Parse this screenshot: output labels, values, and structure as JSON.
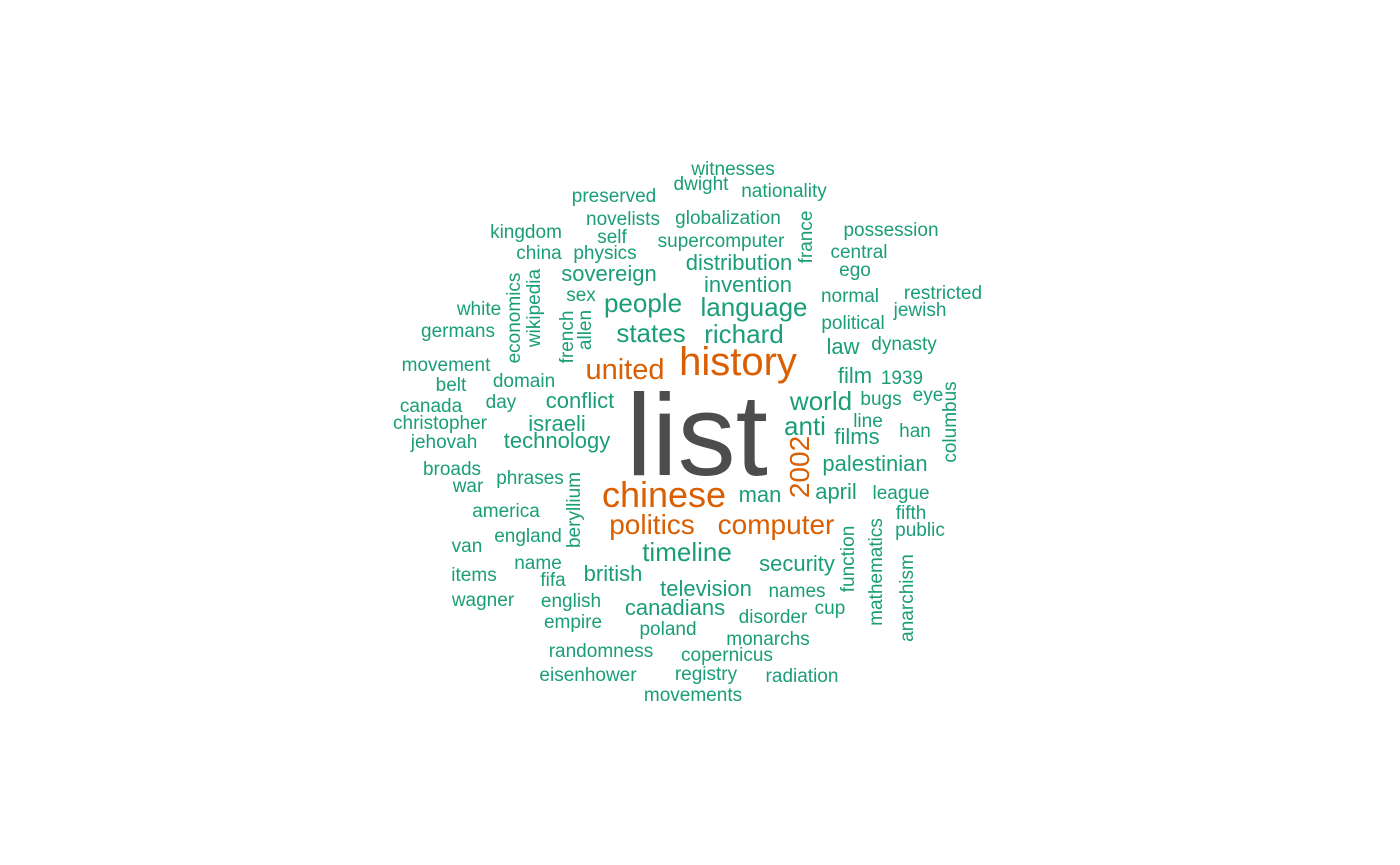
{
  "chart_data": {
    "type": "wordcloud",
    "colors": {
      "largest": "#4d4d4d",
      "large": "#d95f02",
      "regular": "#1b9e77"
    },
    "words": [
      {
        "text": "list",
        "tier": "largest",
        "weight": 10
      },
      {
        "text": "history",
        "tier": "large",
        "weight": 4
      },
      {
        "text": "chinese",
        "tier": "large",
        "weight": 4
      },
      {
        "text": "united",
        "tier": "large",
        "weight": 3
      },
      {
        "text": "politics",
        "tier": "large",
        "weight": 3
      },
      {
        "text": "computer",
        "tier": "large",
        "weight": 3
      },
      {
        "text": "2002",
        "tier": "large",
        "weight": 3
      },
      {
        "text": "witnesses",
        "tier": "regular",
        "weight": 1
      },
      {
        "text": "dwight",
        "tier": "regular",
        "weight": 1
      },
      {
        "text": "nationality",
        "tier": "regular",
        "weight": 1
      },
      {
        "text": "preserved",
        "tier": "regular",
        "weight": 1
      },
      {
        "text": "novelists",
        "tier": "regular",
        "weight": 1
      },
      {
        "text": "globalization",
        "tier": "regular",
        "weight": 1
      },
      {
        "text": "kingdom",
        "tier": "regular",
        "weight": 1
      },
      {
        "text": "self",
        "tier": "regular",
        "weight": 1
      },
      {
        "text": "supercomputer",
        "tier": "regular",
        "weight": 1
      },
      {
        "text": "france",
        "tier": "regular",
        "weight": 1
      },
      {
        "text": "possession",
        "tier": "regular",
        "weight": 1
      },
      {
        "text": "china",
        "tier": "regular",
        "weight": 1
      },
      {
        "text": "physics",
        "tier": "regular",
        "weight": 1
      },
      {
        "text": "central",
        "tier": "regular",
        "weight": 1
      },
      {
        "text": "distribution",
        "tier": "regular",
        "weight": 2
      },
      {
        "text": "sovereign",
        "tier": "regular",
        "weight": 2
      },
      {
        "text": "ego",
        "tier": "regular",
        "weight": 1
      },
      {
        "text": "invention",
        "tier": "regular",
        "weight": 2
      },
      {
        "text": "wikipedia",
        "tier": "regular",
        "weight": 1
      },
      {
        "text": "economics",
        "tier": "regular",
        "weight": 1
      },
      {
        "text": "sex",
        "tier": "regular",
        "weight": 1
      },
      {
        "text": "normal",
        "tier": "regular",
        "weight": 1
      },
      {
        "text": "restricted",
        "tier": "regular",
        "weight": 1
      },
      {
        "text": "white",
        "tier": "regular",
        "weight": 1
      },
      {
        "text": "people",
        "tier": "regular",
        "weight": 2
      },
      {
        "text": "language",
        "tier": "regular",
        "weight": 2
      },
      {
        "text": "jewish",
        "tier": "regular",
        "weight": 1
      },
      {
        "text": "political",
        "tier": "regular",
        "weight": 1
      },
      {
        "text": "germans",
        "tier": "regular",
        "weight": 1
      },
      {
        "text": "allen",
        "tier": "regular",
        "weight": 1
      },
      {
        "text": "french",
        "tier": "regular",
        "weight": 1
      },
      {
        "text": "states",
        "tier": "regular",
        "weight": 2
      },
      {
        "text": "richard",
        "tier": "regular",
        "weight": 2
      },
      {
        "text": "law",
        "tier": "regular",
        "weight": 2
      },
      {
        "text": "dynasty",
        "tier": "regular",
        "weight": 1
      },
      {
        "text": "movement",
        "tier": "regular",
        "weight": 1
      },
      {
        "text": "belt",
        "tier": "regular",
        "weight": 1
      },
      {
        "text": "domain",
        "tier": "regular",
        "weight": 1
      },
      {
        "text": "film",
        "tier": "regular",
        "weight": 1
      },
      {
        "text": "1939",
        "tier": "regular",
        "weight": 1
      },
      {
        "text": "canada",
        "tier": "regular",
        "weight": 1
      },
      {
        "text": "day",
        "tier": "regular",
        "weight": 1
      },
      {
        "text": "conflict",
        "tier": "regular",
        "weight": 2
      },
      {
        "text": "world",
        "tier": "regular",
        "weight": 2
      },
      {
        "text": "bugs",
        "tier": "regular",
        "weight": 1
      },
      {
        "text": "eye",
        "tier": "regular",
        "weight": 1
      },
      {
        "text": "columbus",
        "tier": "regular",
        "weight": 1
      },
      {
        "text": "christopher",
        "tier": "regular",
        "weight": 1
      },
      {
        "text": "israeli",
        "tier": "regular",
        "weight": 2
      },
      {
        "text": "anti",
        "tier": "regular",
        "weight": 2
      },
      {
        "text": "line",
        "tier": "regular",
        "weight": 1
      },
      {
        "text": "han",
        "tier": "regular",
        "weight": 1
      },
      {
        "text": "jehovah",
        "tier": "regular",
        "weight": 1
      },
      {
        "text": "technology",
        "tier": "regular",
        "weight": 2
      },
      {
        "text": "films",
        "tier": "regular",
        "weight": 1
      },
      {
        "text": "palestinian",
        "tier": "regular",
        "weight": 2
      },
      {
        "text": "broads",
        "tier": "regular",
        "weight": 1
      },
      {
        "text": "phrases",
        "tier": "regular",
        "weight": 1
      },
      {
        "text": "war",
        "tier": "regular",
        "weight": 1
      },
      {
        "text": "beryllium",
        "tier": "regular",
        "weight": 1
      },
      {
        "text": "man",
        "tier": "regular",
        "weight": 2
      },
      {
        "text": "april",
        "tier": "regular",
        "weight": 2
      },
      {
        "text": "league",
        "tier": "regular",
        "weight": 1
      },
      {
        "text": "america",
        "tier": "regular",
        "weight": 1
      },
      {
        "text": "fifth",
        "tier": "regular",
        "weight": 1
      },
      {
        "text": "england",
        "tier": "regular",
        "weight": 1
      },
      {
        "text": "public",
        "tier": "regular",
        "weight": 1
      },
      {
        "text": "function",
        "tier": "regular",
        "weight": 1
      },
      {
        "text": "mathematics",
        "tier": "regular",
        "weight": 1
      },
      {
        "text": "van",
        "tier": "regular",
        "weight": 1
      },
      {
        "text": "timeline",
        "tier": "regular",
        "weight": 2
      },
      {
        "text": "anarchism",
        "tier": "regular",
        "weight": 1
      },
      {
        "text": "name",
        "tier": "regular",
        "weight": 1
      },
      {
        "text": "security",
        "tier": "regular",
        "weight": 2
      },
      {
        "text": "items",
        "tier": "regular",
        "weight": 1
      },
      {
        "text": "british",
        "tier": "regular",
        "weight": 2
      },
      {
        "text": "fifa",
        "tier": "regular",
        "weight": 1
      },
      {
        "text": "television",
        "tier": "regular",
        "weight": 2
      },
      {
        "text": "names",
        "tier": "regular",
        "weight": 1
      },
      {
        "text": "wagner",
        "tier": "regular",
        "weight": 1
      },
      {
        "text": "english",
        "tier": "regular",
        "weight": 1
      },
      {
        "text": "canadians",
        "tier": "regular",
        "weight": 2
      },
      {
        "text": "cup",
        "tier": "regular",
        "weight": 1
      },
      {
        "text": "empire",
        "tier": "regular",
        "weight": 1
      },
      {
        "text": "disorder",
        "tier": "regular",
        "weight": 1
      },
      {
        "text": "poland",
        "tier": "regular",
        "weight": 1
      },
      {
        "text": "monarchs",
        "tier": "regular",
        "weight": 1
      },
      {
        "text": "randomness",
        "tier": "regular",
        "weight": 1
      },
      {
        "text": "copernicus",
        "tier": "regular",
        "weight": 1
      },
      {
        "text": "eisenhower",
        "tier": "regular",
        "weight": 1
      },
      {
        "text": "registry",
        "tier": "regular",
        "weight": 1
      },
      {
        "text": "radiation",
        "tier": "regular",
        "weight": 1
      },
      {
        "text": "movements",
        "tier": "regular",
        "weight": 1
      }
    ]
  }
}
